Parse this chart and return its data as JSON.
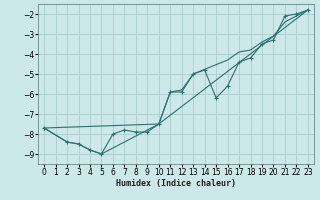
{
  "xlabel": "Humidex (Indice chaleur)",
  "xlim": [
    -0.5,
    23.5
  ],
  "ylim": [
    -9.5,
    -1.5
  ],
  "yticks": [
    -9,
    -8,
    -7,
    -6,
    -5,
    -4,
    -3,
    -2
  ],
  "xticks": [
    0,
    1,
    2,
    3,
    4,
    5,
    6,
    7,
    8,
    9,
    10,
    11,
    12,
    13,
    14,
    15,
    16,
    17,
    18,
    19,
    20,
    21,
    22,
    23
  ],
  "bg_color": "#cce8e8",
  "grid_color": "#aacccc",
  "line_color": "#2d7070",
  "series": [
    {
      "x": [
        0,
        2,
        3,
        4,
        5,
        6,
        7,
        8,
        9,
        10,
        11,
        12,
        13,
        14,
        15,
        16,
        17,
        18,
        19,
        20,
        21,
        22,
        23
      ],
      "y": [
        -7.7,
        -8.4,
        -8.5,
        -8.8,
        -9.0,
        -8.0,
        -7.8,
        -7.9,
        -7.9,
        -7.5,
        -5.9,
        -5.9,
        -5.0,
        -4.8,
        -6.2,
        -5.6,
        -4.4,
        -4.2,
        -3.5,
        -3.3,
        -2.1,
        -2.0,
        -1.8
      ],
      "marker": true
    },
    {
      "x": [
        0,
        2,
        3,
        4,
        5,
        10,
        11,
        12,
        13,
        16,
        17,
        18,
        19,
        20,
        21,
        22,
        23
      ],
      "y": [
        -7.7,
        -8.4,
        -8.5,
        -8.8,
        -9.0,
        -7.5,
        -5.9,
        -5.8,
        -5.0,
        -4.3,
        -3.9,
        -3.8,
        -3.4,
        -3.1,
        -2.4,
        -2.1,
        -1.8
      ],
      "marker": false
    },
    {
      "x": [
        0,
        10,
        23
      ],
      "y": [
        -7.7,
        -7.5,
        -1.8
      ],
      "marker": false
    }
  ]
}
